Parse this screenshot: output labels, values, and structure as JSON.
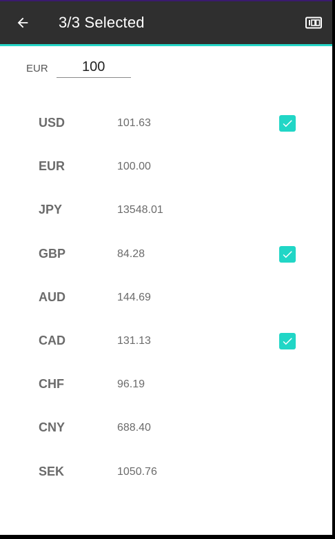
{
  "toolbar": {
    "title": "3/3 Selected",
    "back_icon": "arrow-left-icon",
    "action_icon": "odometer-icon",
    "bg_color": "#2f2f2f",
    "accent_color": "#26d6c8"
  },
  "amount": {
    "base_currency": "EUR",
    "value": "100"
  },
  "currencies": [
    {
      "code": "USD",
      "value": "101.63",
      "selected": true
    },
    {
      "code": "EUR",
      "value": "100.00",
      "selected": false
    },
    {
      "code": "JPY",
      "value": "13548.01",
      "selected": false
    },
    {
      "code": "GBP",
      "value": "84.28",
      "selected": true
    },
    {
      "code": "AUD",
      "value": "144.69",
      "selected": false
    },
    {
      "code": "CAD",
      "value": "131.13",
      "selected": true
    },
    {
      "code": "CHF",
      "value": "96.19",
      "selected": false
    },
    {
      "code": "CNY",
      "value": "688.40",
      "selected": false
    },
    {
      "code": "SEK",
      "value": "1050.76",
      "selected": false
    }
  ],
  "colors": {
    "checkbox": "#21d6c6",
    "text_muted": "#6b6b6b"
  }
}
